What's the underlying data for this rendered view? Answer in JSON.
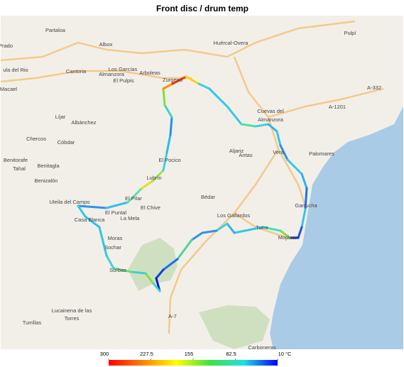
{
  "title": "Front disc / drum temp",
  "places": [
    "Partaloa",
    "Albox",
    "Huércal-Overa",
    "Pulpí",
    "Prado",
    "ula del Rio",
    "Cantoria",
    "Los Garcías",
    "Almanzora",
    "Arboleas",
    "El Pulpis",
    "Zurgena",
    "A-332",
    "Macael",
    "A-1201",
    "Cuevas del",
    "Almanzora",
    "Líjar",
    "Albánchez",
    "Chercos",
    "Cóbdar",
    "Aljariz",
    "Antas",
    "Vera",
    "Palomares",
    "Benitorafe",
    "El Pocico",
    "Tahal",
    "Benitagla",
    "Lubrín",
    "Benizalón",
    "Bédar",
    "El Pilar",
    "Uleila del Campo",
    "Garrucha",
    "El Chive",
    "El Puntal",
    "Los Gallardos",
    "La Mela",
    "Casa Blanca",
    "Turre",
    "Mojácar",
    "Moras",
    "Sochar",
    "Sorbas",
    "A-7",
    "Lucainena de las",
    "Torres",
    "Turrillas",
    "Carboneras"
  ],
  "colorbar": {
    "range": [
      300,
      10
    ],
    "ticks": [
      300,
      227.5,
      155,
      82.5,
      {
        "value": 10,
        "label": "10 °C"
      }
    ],
    "colors": [
      "#ff0000",
      "#ff8000",
      "#ffff00",
      "#40e040",
      "#20e0e0",
      "#0000ff"
    ]
  }
}
